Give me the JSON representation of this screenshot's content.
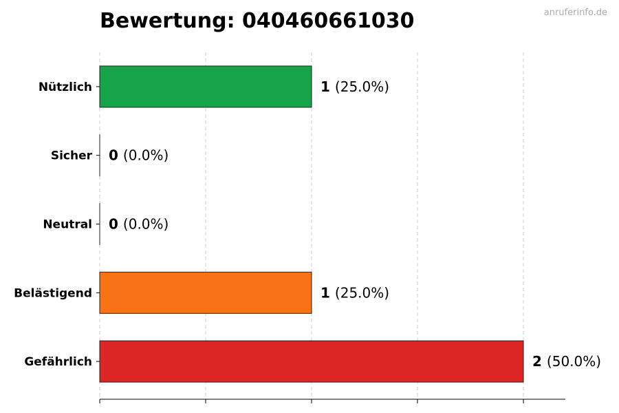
{
  "chart_data": {
    "type": "bar",
    "orientation": "horizontal",
    "title": "Bewertung: 040460661030",
    "watermark": "anruferinfo.de",
    "categories": [
      "Nützlich",
      "Sicher",
      "Neutral",
      "Belästigend",
      "Gefährlich"
    ],
    "values": [
      1,
      0,
      0,
      1,
      2
    ],
    "percent_labels": [
      "(25.0%)",
      "(0.0%)",
      "(0.0%)",
      "(25.0%)",
      "(50.0%)"
    ],
    "colors": [
      "#16a34a",
      "#16a34a",
      "#6b7280",
      "#f97316",
      "#dc2626"
    ],
    "xlim": [
      0,
      2.2
    ],
    "grid": true,
    "legend": "none"
  }
}
